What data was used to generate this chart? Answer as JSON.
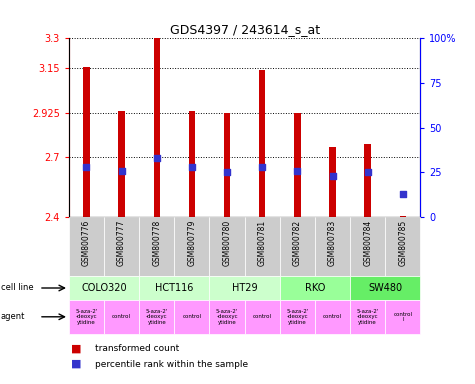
{
  "title": "GDS4397 / 243614_s_at",
  "samples": [
    "GSM800776",
    "GSM800777",
    "GSM800778",
    "GSM800779",
    "GSM800780",
    "GSM800781",
    "GSM800782",
    "GSM800783",
    "GSM800784",
    "GSM800785"
  ],
  "transformed_counts": [
    3.155,
    2.935,
    3.3,
    2.935,
    2.925,
    3.14,
    2.925,
    2.755,
    2.77,
    2.405
  ],
  "percentile_ranks": [
    28,
    26,
    33,
    28,
    25,
    28,
    26,
    23,
    25,
    13
  ],
  "ylim": [
    2.4,
    3.3
  ],
  "yticks": [
    2.4,
    2.7,
    2.925,
    3.15,
    3.3
  ],
  "ytick_labels": [
    "2.4",
    "2.7",
    "2.925",
    "3.15",
    "3.3"
  ],
  "y2lim": [
    0,
    100
  ],
  "y2ticks": [
    0,
    25,
    50,
    75,
    100
  ],
  "y2tick_labels": [
    "0",
    "25",
    "50",
    "75",
    "100%"
  ],
  "bar_color": "#cc0000",
  "dot_color": "#3333cc",
  "bar_bottom": 2.4,
  "bar_width": 0.18,
  "cell_lines": [
    {
      "label": "COLO320",
      "start": 0,
      "end": 2,
      "color": "#ccffcc"
    },
    {
      "label": "HCT116",
      "start": 2,
      "end": 4,
      "color": "#ccffcc"
    },
    {
      "label": "HT29",
      "start": 4,
      "end": 6,
      "color": "#ccffcc"
    },
    {
      "label": "RKO",
      "start": 6,
      "end": 8,
      "color": "#99ff99"
    },
    {
      "label": "SW480",
      "start": 8,
      "end": 10,
      "color": "#66ee66"
    }
  ],
  "agents": [
    {
      "label": "5-aza-2'\n-deoxyc\nytidine",
      "start": 0,
      "end": 1,
      "color": "#ff99ff"
    },
    {
      "label": "control",
      "start": 1,
      "end": 2,
      "color": "#ff99ff"
    },
    {
      "label": "5-aza-2'\n-deoxyc\nytidine",
      "start": 2,
      "end": 3,
      "color": "#ff99ff"
    },
    {
      "label": "control",
      "start": 3,
      "end": 4,
      "color": "#ff99ff"
    },
    {
      "label": "5-aza-2'\n-deoxyc\nytidine",
      "start": 4,
      "end": 5,
      "color": "#ff99ff"
    },
    {
      "label": "control",
      "start": 5,
      "end": 6,
      "color": "#ff99ff"
    },
    {
      "label": "5-aza-2'\n-deoxyc\nytidine",
      "start": 6,
      "end": 7,
      "color": "#ff99ff"
    },
    {
      "label": "control",
      "start": 7,
      "end": 8,
      "color": "#ff99ff"
    },
    {
      "label": "5-aza-2'\n-deoxyc\nytidine",
      "start": 8,
      "end": 9,
      "color": "#ff99ff"
    },
    {
      "label": "control\nl",
      "start": 9,
      "end": 10,
      "color": "#ff99ff"
    }
  ],
  "sample_bg": "#cccccc"
}
